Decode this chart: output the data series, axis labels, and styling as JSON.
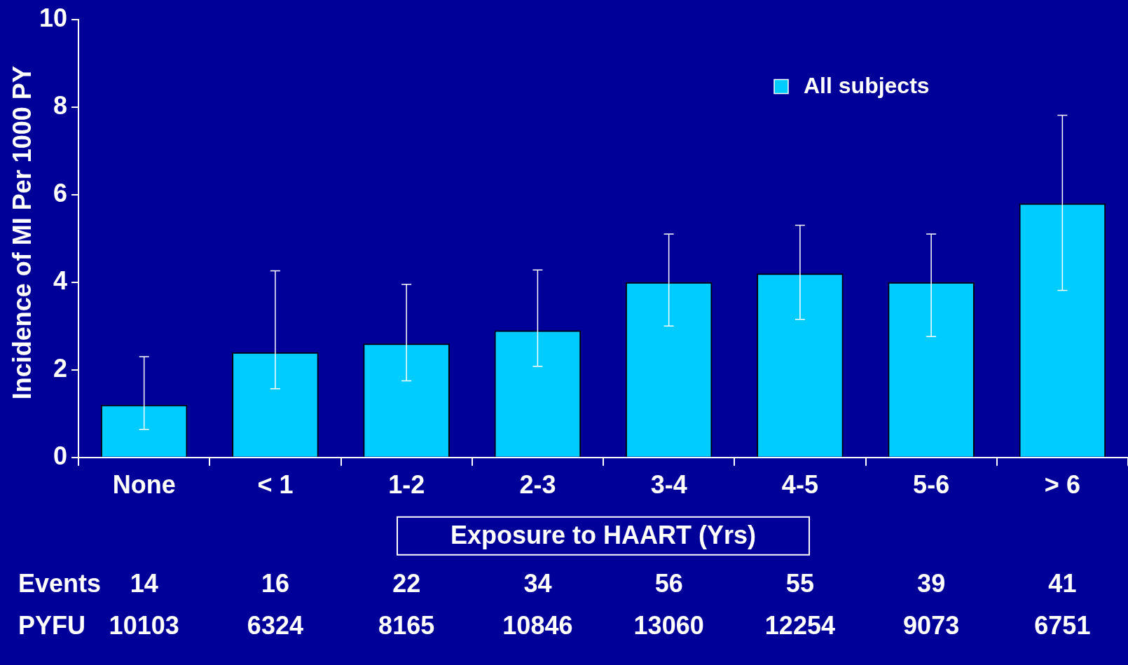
{
  "chart_data": {
    "type": "bar",
    "ylabel": "Incidence of MI Per 1000 PY",
    "xlabel": "Exposure to HAART (Yrs)",
    "categories": [
      "None",
      "< 1",
      "1-2",
      "2-3",
      "3-4",
      "4-5",
      "5-6",
      "> 6"
    ],
    "series": [
      {
        "name": "All subjects",
        "color": "#00ccff",
        "values": [
          1.2,
          2.4,
          2.6,
          2.9,
          4.0,
          4.2,
          4.0,
          5.8
        ],
        "errors": [
          [
            0.64,
            2.3
          ],
          [
            1.57,
            4.26
          ],
          [
            1.75,
            3.95
          ],
          [
            2.08,
            4.28
          ],
          [
            3.0,
            5.1
          ],
          [
            3.15,
            5.3
          ],
          [
            2.76,
            5.1
          ],
          [
            3.81,
            7.81
          ]
        ]
      }
    ],
    "ylim": [
      0,
      10
    ],
    "yticks": [
      0,
      2,
      4,
      6,
      8,
      10
    ],
    "grid": false,
    "legend": "top right",
    "annotations": [
      "Events",
      "14",
      "16",
      "22",
      "34",
      "56",
      "55",
      "39",
      "41",
      "PYFU",
      "10103",
      "6324",
      "8165",
      "10846",
      "13060",
      "12254",
      "9073",
      "6751"
    ]
  }
}
